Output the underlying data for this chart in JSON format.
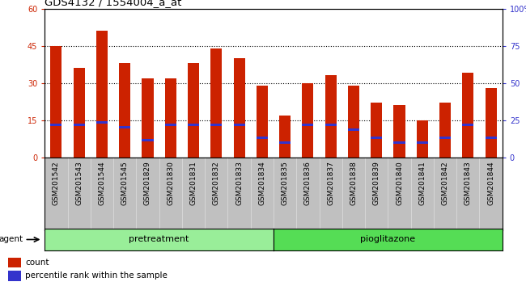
{
  "title": "GDS4132 / 1554004_a_at",
  "categories": [
    "GSM201542",
    "GSM201543",
    "GSM201544",
    "GSM201545",
    "GSM201829",
    "GSM201830",
    "GSM201831",
    "GSM201832",
    "GSM201833",
    "GSM201834",
    "GSM201835",
    "GSM201836",
    "GSM201837",
    "GSM201838",
    "GSM201839",
    "GSM201840",
    "GSM201841",
    "GSM201842",
    "GSM201843",
    "GSM201844"
  ],
  "count_values": [
    45,
    36,
    51,
    38,
    32,
    32,
    38,
    44,
    40,
    29,
    17,
    30,
    33,
    29,
    22,
    21,
    15,
    22,
    34,
    28
  ],
  "percentile_values": [
    13,
    13,
    14,
    12,
    7,
    13,
    13,
    13,
    13,
    8,
    6,
    13,
    13,
    11,
    8,
    6,
    6,
    8,
    13,
    8
  ],
  "pretreatment_count": 10,
  "group_labels": [
    "pretreatment",
    "pioglitazone"
  ],
  "ylim_left": [
    0,
    60
  ],
  "ylim_right": [
    0,
    100
  ],
  "yticks_left": [
    0,
    15,
    30,
    45,
    60
  ],
  "yticks_right": [
    0,
    25,
    50,
    75,
    100
  ],
  "ytick_labels_right": [
    "0",
    "25",
    "50",
    "75",
    "100%"
  ],
  "bar_color": "#cc2200",
  "percentile_color": "#3333cc",
  "tick_bg_color": "#c0c0c0",
  "pretreatment_color": "#99ee99",
  "pioglitazone_color": "#55dd55",
  "agent_label": "agent",
  "legend_count": "count",
  "legend_percentile": "percentile rank within the sample",
  "bar_width": 0.5,
  "title_fontsize": 9.5,
  "tick_fontsize": 6.5,
  "group_fontsize": 8,
  "legend_fontsize": 7.5
}
